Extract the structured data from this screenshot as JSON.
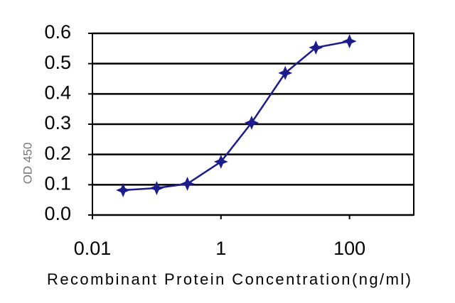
{
  "chart_data": {
    "type": "line",
    "y_label": "OD 450",
    "x_label": "Recombinant Protein Concentration(ng/ml)",
    "x": [
      0.03,
      0.1,
      0.3,
      1,
      3,
      10,
      30,
      100
    ],
    "series": [
      {
        "color": "#1c1c8a",
        "values": [
          0.082,
          0.089,
          0.103,
          0.176,
          0.305,
          0.469,
          0.553,
          0.574
        ]
      }
    ],
    "xscale": "log",
    "xlim": [
      0.01,
      1000
    ],
    "xticks": [
      0.01,
      1,
      100
    ],
    "ylim": [
      0,
      0.6
    ],
    "yticks": [
      {
        "value": 0,
        "label": "0.0"
      },
      0.1,
      0.2,
      0.3,
      0.4,
      0.5,
      0.6
    ],
    "grid": true
  }
}
